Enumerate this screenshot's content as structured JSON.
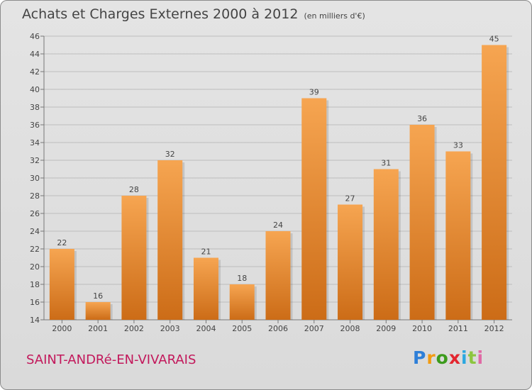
{
  "header": {
    "title": "Achats et Charges Externes 2000 à 2012",
    "subtitle": "(en milliers d'€)"
  },
  "footer": {
    "commune": "SAINT-ANDRé-EN-VIVARAIS",
    "logo": [
      "P",
      "r",
      "o",
      "x",
      "i",
      "t",
      "i"
    ],
    "logo_colors": [
      "#2e7fd8",
      "#f29b11",
      "#3c9b1c",
      "#e3262f",
      "#2aa7e0",
      "#8cc63f",
      "#e06aa5"
    ]
  },
  "colors": {
    "bar_light": "#f6a551",
    "bar_dark": "#cc6c17",
    "grid": "#bdbdbd",
    "axis_text": "#444444"
  },
  "chart_data": {
    "type": "bar",
    "title": "Achats et Charges Externes 2000 à 2012",
    "subtitle": "(en milliers d'€)",
    "categories": [
      "2000",
      "2001",
      "2002",
      "2003",
      "2004",
      "2005",
      "2006",
      "2007",
      "2008",
      "2009",
      "2010",
      "2011",
      "2012"
    ],
    "values": [
      22,
      16,
      28,
      32,
      21,
      18,
      24,
      39,
      27,
      31,
      36,
      33,
      45
    ],
    "ylim": [
      14,
      46
    ],
    "yticks": [
      14,
      16,
      18,
      20,
      22,
      24,
      26,
      28,
      30,
      32,
      34,
      36,
      38,
      40,
      42,
      44,
      46
    ],
    "grid": true
  }
}
